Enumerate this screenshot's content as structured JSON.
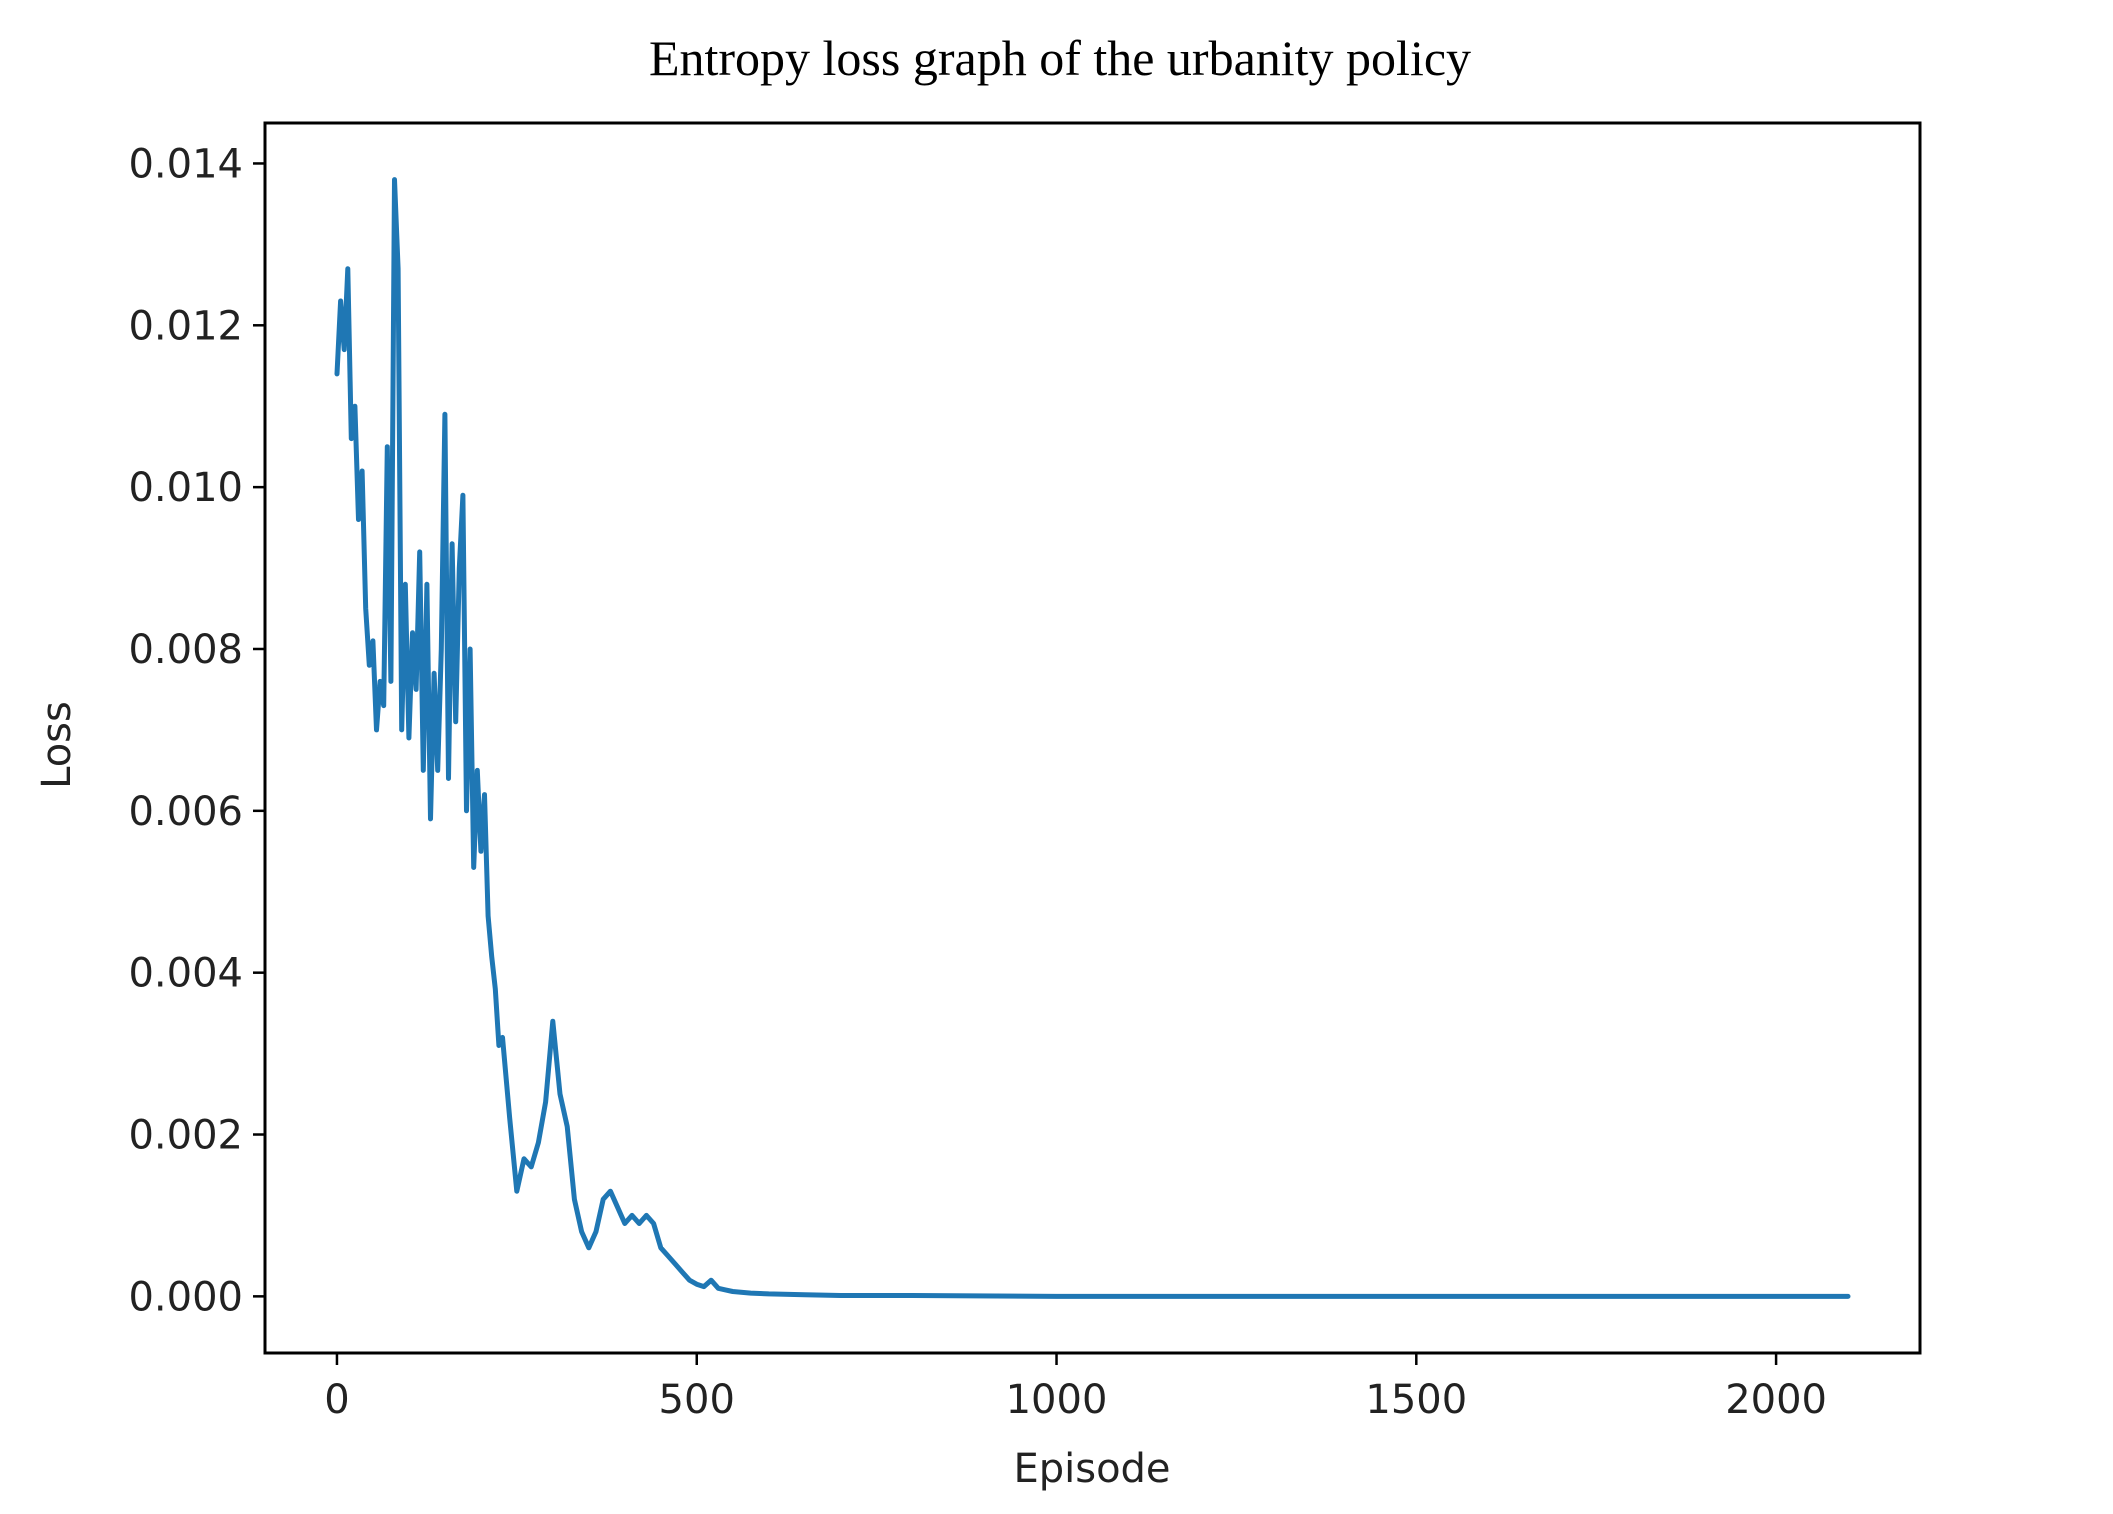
{
  "chart_data": {
    "type": "line",
    "title": "Entropy loss graph of the urbanity policy",
    "xlabel": "Episode",
    "ylabel": "Loss",
    "xlim": [
      -100,
      2200
    ],
    "ylim": [
      -0.0007,
      0.0145
    ],
    "xticks": [
      0,
      500,
      1000,
      1500,
      2000
    ],
    "xtick_labels": [
      "0",
      "500",
      "1000",
      "1500",
      "2000"
    ],
    "yticks": [
      0.0,
      0.002,
      0.004,
      0.006,
      0.008,
      0.01,
      0.012,
      0.014
    ],
    "ytick_labels": [
      "0.000",
      "0.002",
      "0.004",
      "0.006",
      "0.008",
      "0.010",
      "0.012",
      "0.014"
    ],
    "grid": false,
    "legend": "none",
    "series_color": "#1f77b4",
    "series": [
      {
        "x": [
          0,
          5,
          10,
          15,
          20,
          25,
          30,
          35,
          40,
          45,
          50,
          55,
          60,
          65,
          70,
          75,
          80,
          85,
          90,
          95,
          100,
          105,
          110,
          115,
          120,
          125,
          130,
          135,
          140,
          145,
          150,
          155,
          160,
          165,
          170,
          175,
          180,
          185,
          190,
          195,
          200,
          205,
          210,
          215,
          220,
          225,
          230,
          240,
          250,
          260,
          270,
          280,
          290,
          300,
          310,
          320,
          330,
          340,
          350,
          360,
          370,
          380,
          390,
          400,
          410,
          420,
          430,
          440,
          450,
          460,
          470,
          480,
          490,
          500,
          510,
          520,
          530,
          540,
          550,
          575,
          600,
          650,
          700,
          800,
          1000,
          1200,
          1500,
          1800,
          2000,
          2100
        ],
        "y": [
          0.0114,
          0.0123,
          0.0117,
          0.0127,
          0.0106,
          0.011,
          0.0096,
          0.0102,
          0.0085,
          0.0078,
          0.0081,
          0.007,
          0.0076,
          0.0073,
          0.0105,
          0.0076,
          0.0138,
          0.0127,
          0.007,
          0.0088,
          0.0069,
          0.0082,
          0.0075,
          0.0092,
          0.0065,
          0.0088,
          0.0059,
          0.0077,
          0.0065,
          0.008,
          0.0109,
          0.0064,
          0.0093,
          0.0071,
          0.009,
          0.0099,
          0.006,
          0.008,
          0.0053,
          0.0065,
          0.0055,
          0.0062,
          0.0047,
          0.0042,
          0.0038,
          0.0031,
          0.0032,
          0.0022,
          0.0013,
          0.0017,
          0.0016,
          0.0019,
          0.0024,
          0.0034,
          0.0025,
          0.0021,
          0.0012,
          0.0008,
          0.0006,
          0.0008,
          0.0012,
          0.0013,
          0.0011,
          0.0009,
          0.001,
          0.0009,
          0.001,
          0.0009,
          0.0006,
          0.0005,
          0.0004,
          0.0003,
          0.0002,
          0.00015,
          0.00012,
          0.0002,
          0.0001,
          8e-05,
          6e-05,
          4e-05,
          3e-05,
          2e-05,
          1e-05,
          1e-05,
          0.0,
          0.0,
          0.0,
          0.0,
          0.0,
          0.0
        ]
      }
    ]
  }
}
